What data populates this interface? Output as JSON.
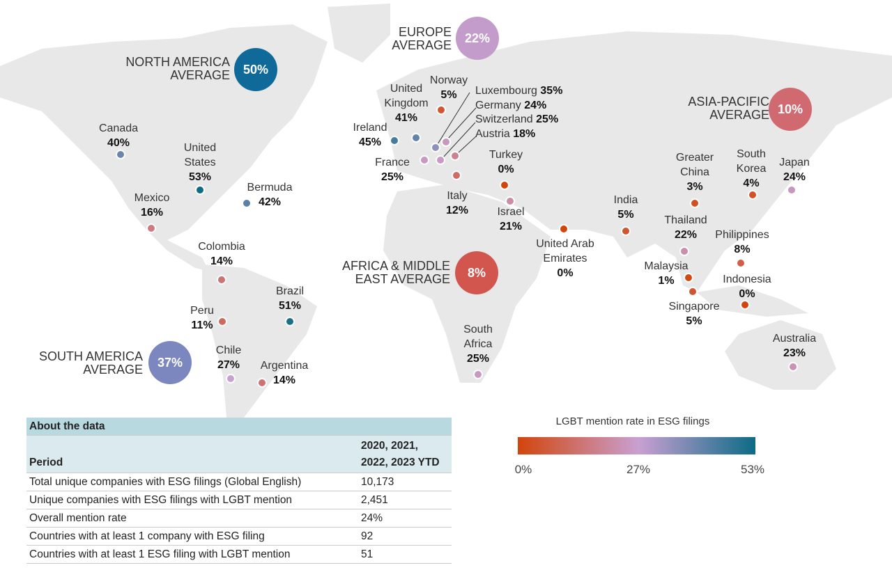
{
  "scale_colors": {
    "low": "#d2450c",
    "mid": "#c9a0d2",
    "high": "#0c6b86"
  },
  "regions": [
    {
      "id": "na",
      "line1": "NORTH AMERICA",
      "line2": "AVERAGE",
      "value": "50%",
      "color": "#0f6a9a"
    },
    {
      "id": "eu",
      "line1": "EUROPE",
      "line2": "AVERAGE",
      "value": "22%",
      "color": "#c49ccc"
    },
    {
      "id": "ap",
      "line1": "ASIA-PACIFIC",
      "line2": "AVERAGE",
      "value": "10%",
      "color": "#d06a70"
    },
    {
      "id": "am",
      "line1": "AFRICA & MIDDLE",
      "line2": "EAST AVERAGE",
      "value": "8%",
      "color": "#d2554e"
    },
    {
      "id": "sa",
      "line1": "SOUTH AMERICA",
      "line2": "AVERAGE",
      "value": "37%",
      "color": "#7c87bf"
    }
  ],
  "countries": [
    {
      "name": "Canada",
      "rate": "40%"
    },
    {
      "name": "United States",
      "rate": "53%"
    },
    {
      "name": "Mexico",
      "rate": "16%"
    },
    {
      "name": "Bermuda",
      "rate": "42%"
    },
    {
      "name": "Colombia",
      "rate": "14%"
    },
    {
      "name": "Brazil",
      "rate": "51%"
    },
    {
      "name": "Peru",
      "rate": "11%"
    },
    {
      "name": "Chile",
      "rate": "27%"
    },
    {
      "name": "Argentina",
      "rate": "14%"
    },
    {
      "name": "Norway",
      "rate": "5%"
    },
    {
      "name": "United Kingdom",
      "rate": "41%"
    },
    {
      "name": "Ireland",
      "rate": "45%"
    },
    {
      "name": "France",
      "rate": "25%"
    },
    {
      "name": "Luxembourg",
      "rate": "35%"
    },
    {
      "name": "Germany",
      "rate": "24%"
    },
    {
      "name": "Switzerland",
      "rate": "25%"
    },
    {
      "name": "Austria",
      "rate": "18%"
    },
    {
      "name": "Italy",
      "rate": "12%"
    },
    {
      "name": "Turkey",
      "rate": "0%"
    },
    {
      "name": "Israel",
      "rate": "21%"
    },
    {
      "name": "United Arab Emirates",
      "rate": "0%"
    },
    {
      "name": "South Africa",
      "rate": "25%"
    },
    {
      "name": "India",
      "rate": "5%"
    },
    {
      "name": "Greater China",
      "rate": "3%"
    },
    {
      "name": "South Korea",
      "rate": "4%"
    },
    {
      "name": "Japan",
      "rate": "24%"
    },
    {
      "name": "Thailand",
      "rate": "22%"
    },
    {
      "name": "Philippines",
      "rate": "8%"
    },
    {
      "name": "Malaysia",
      "rate": "1%"
    },
    {
      "name": "Singapore",
      "rate": "5%"
    },
    {
      "name": "Indonesia",
      "rate": "0%"
    },
    {
      "name": "Australia",
      "rate": "23%"
    }
  ],
  "legend": {
    "title": "LGBT mention rate in ESG filings",
    "min": "0%",
    "mid": "27%",
    "max": "53%"
  },
  "table": {
    "title": "About the data",
    "header": {
      "label": "Period",
      "value_line1": "2020, 2021,",
      "value_line2": "2022, 2023 YTD"
    },
    "rows": [
      {
        "label": "Total unique companies with ESG filings (Global English)",
        "value": "10,173"
      },
      {
        "label": "Unique companies with ESG filings with LGBT mention",
        "value": "2,451"
      },
      {
        "label": "Overall mention rate",
        "value": "24%"
      },
      {
        "label": "Countries with at least 1 company with ESG filing",
        "value": "92"
      },
      {
        "label": "Countries with at least 1 ESG filing with LGBT mention",
        "value": "51"
      }
    ]
  }
}
